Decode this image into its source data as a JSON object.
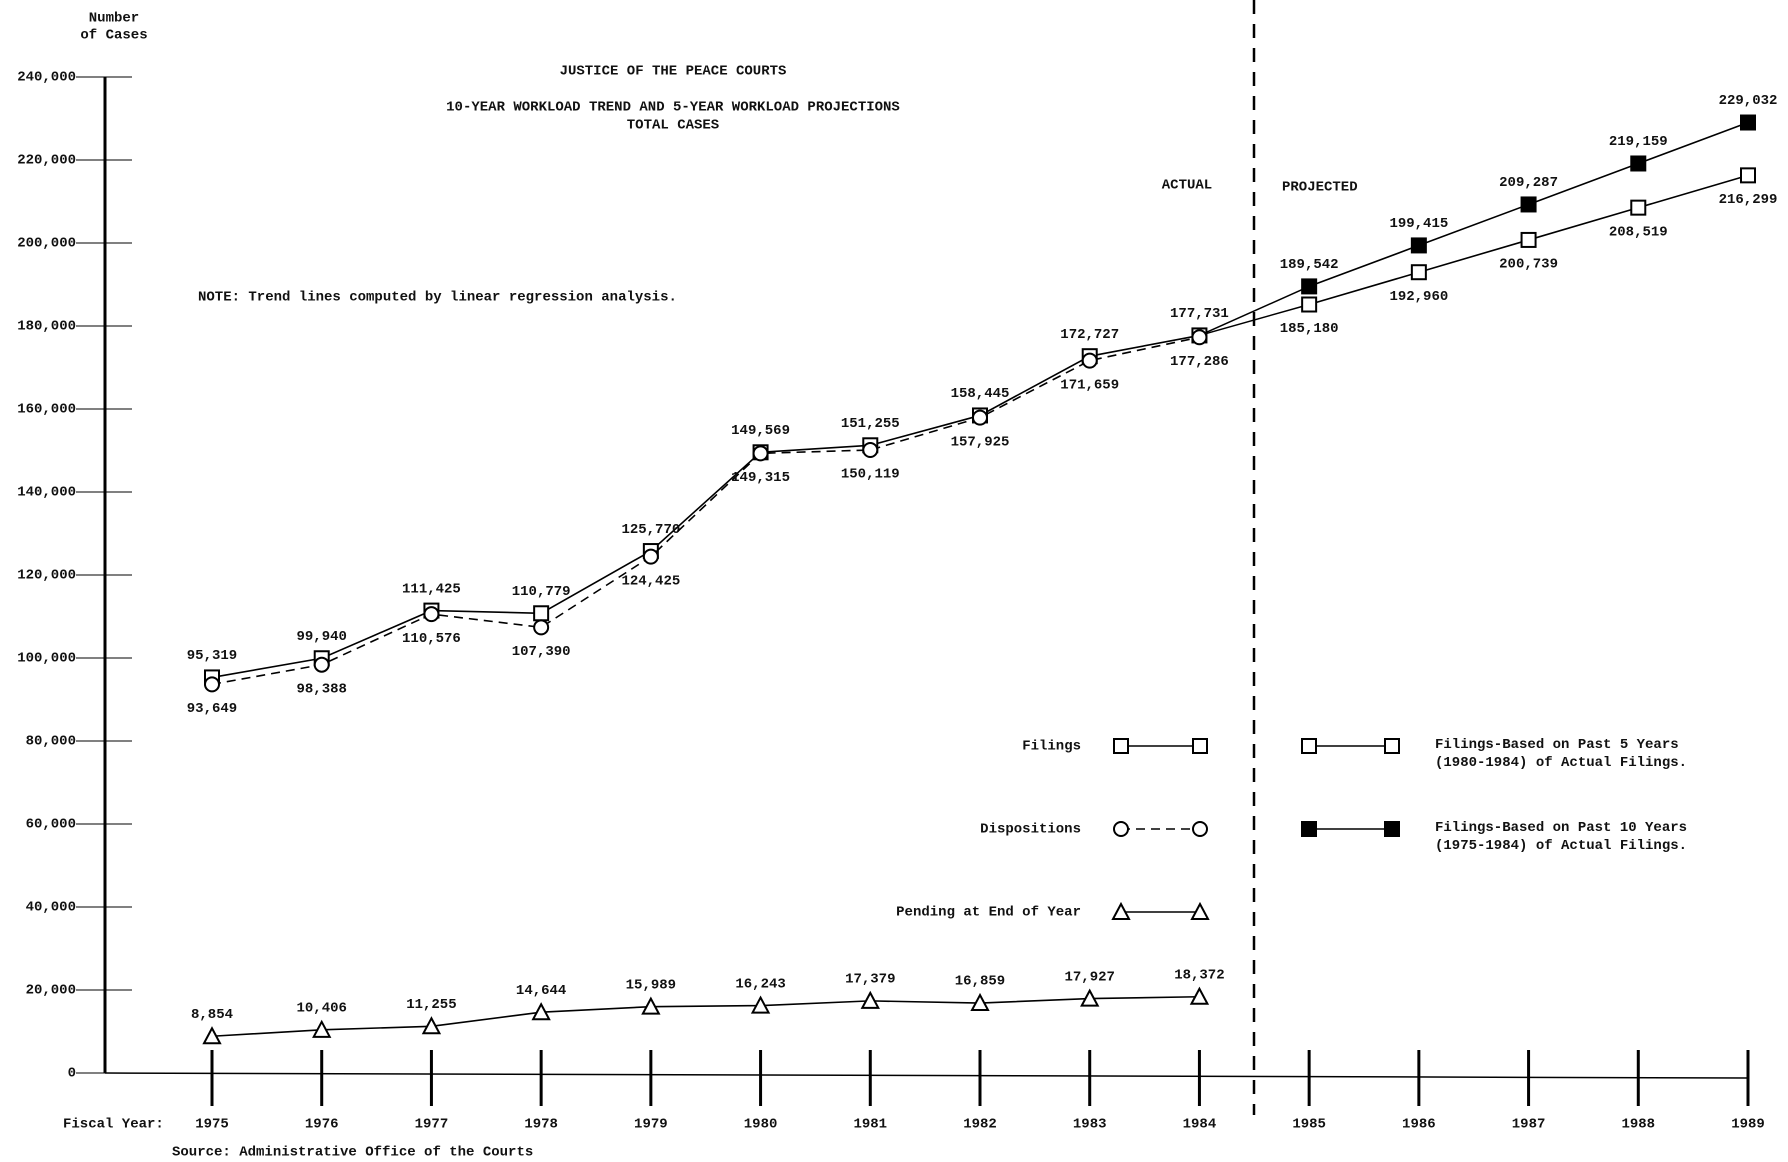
{
  "chart_data": {
    "type": "line",
    "title": "JUSTICE OF THE PEACE COURTS",
    "subtitle": [
      "10-YEAR WORKLOAD TREND AND 5-YEAR WORKLOAD PROJECTIONS",
      "TOTAL CASES"
    ],
    "ylabel": [
      "Number",
      "of Cases"
    ],
    "xlabel": "Fiscal Year:",
    "note": "NOTE:  Trend lines computed by linear regression analysis.",
    "source": "Source:  Administrative Office of the Courts",
    "period_labels": [
      "ACTUAL",
      "PROJECTED"
    ],
    "categories": [
      "1975",
      "1976",
      "1977",
      "1978",
      "1979",
      "1980",
      "1981",
      "1982",
      "1983",
      "1984",
      "1985",
      "1986",
      "1987",
      "1988",
      "1989"
    ],
    "ylim": [
      0,
      240000
    ],
    "yticks": [
      0,
      {
        "value": 20000,
        "label": "20,000"
      },
      {
        "value": 40000,
        "label": "40,000"
      },
      {
        "value": 60000,
        "label": "60,000"
      },
      {
        "value": 80000,
        "label": "80,000"
      },
      {
        "value": 100000,
        "label": "100,000"
      },
      {
        "value": 120000,
        "label": "120,000"
      },
      {
        "value": 140000,
        "label": "140,000"
      },
      {
        "value": 160000,
        "label": "160,000"
      },
      {
        "value": 180000,
        "label": "180,000"
      },
      {
        "value": 200000,
        "label": "200,000"
      },
      {
        "value": 220000,
        "label": "220,000"
      },
      {
        "value": 240000,
        "label": "240,000"
      }
    ],
    "series": [
      {
        "name": "Filings",
        "color": "#000000",
        "marker": "square",
        "filled": false,
        "dashed": false,
        "values": [
          95319,
          99940,
          111425,
          110779,
          125770,
          149569,
          151255,
          158445,
          172727,
          177731,
          null,
          null,
          null,
          null,
          null
        ],
        "value_labels": [
          "95,319",
          "99,940",
          "111,425",
          "110,779",
          "125,770",
          "149,569",
          "151,255",
          "158,445",
          "172,727",
          "177,731",
          null,
          null,
          null,
          null,
          null
        ]
      },
      {
        "name": "Dispositions",
        "color": "#000000",
        "marker": "circle",
        "filled": false,
        "dashed": true,
        "values": [
          93649,
          98388,
          110576,
          107390,
          124425,
          149315,
          150119,
          157925,
          171659,
          177286,
          null,
          null,
          null,
          null,
          null
        ],
        "value_labels": [
          "93,649",
          "98,388",
          "110,576",
          "107,390",
          "124,425",
          "149,315",
          "150,119",
          "157,925",
          "171,659",
          "177,286",
          null,
          null,
          null,
          null,
          null
        ]
      },
      {
        "name": "Pending at End of Year",
        "color": "#000000",
        "marker": "triangle",
        "filled": false,
        "dashed": false,
        "values": [
          8854,
          10406,
          11255,
          14644,
          15989,
          16243,
          17379,
          16859,
          17927,
          18372,
          null,
          null,
          null,
          null,
          null
        ],
        "value_labels": [
          "8,854",
          "10,406",
          "11,255",
          "14,644",
          "15,989",
          "16,243",
          "17,379",
          "16,859",
          "17,927",
          "18,372",
          null,
          null,
          null,
          null,
          null
        ]
      },
      {
        "name": "Filings-Based on Past 5 Years (1980-1984) of Actual Filings.",
        "color": "#000000",
        "marker": "square",
        "filled": false,
        "dashed": false,
        "values": [
          null,
          null,
          null,
          null,
          null,
          null,
          null,
          null,
          null,
          null,
          185180,
          192960,
          200739,
          208519,
          216299
        ],
        "value_labels": [
          null,
          null,
          null,
          null,
          null,
          null,
          null,
          null,
          null,
          null,
          "185,180",
          "192,960",
          "200,739",
          "208,519",
          "216,299"
        ]
      },
      {
        "name": "Filings-Based on Past 10 Years (1975-1984) of Actual Filings.",
        "color": "#000000",
        "marker": "square",
        "filled": true,
        "dashed": false,
        "values": [
          null,
          null,
          null,
          null,
          null,
          null,
          null,
          null,
          null,
          null,
          189542,
          199415,
          209287,
          219159,
          229032
        ],
        "value_labels": [
          null,
          null,
          null,
          null,
          null,
          null,
          null,
          null,
          null,
          null,
          "189,542",
          "199,415",
          "209,287",
          "219,159",
          "229,032"
        ]
      }
    ]
  }
}
